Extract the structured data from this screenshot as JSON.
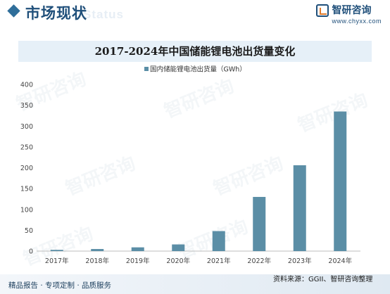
{
  "header": {
    "title": "市场现状",
    "ghost_text": "Status",
    "brand_name": "智研咨询",
    "brand_url": "www.chyxx.com"
  },
  "footer": {
    "left": "精品报告 · 专项定制 · 品质服务",
    "source": "资料来源：GGII、智研咨询整理"
  },
  "watermark_text": "智研咨询",
  "colors": {
    "bar": "#5b8ea6",
    "accent": "#1f4f7a",
    "band": "#e6f0f8"
  },
  "chart_data": {
    "type": "bar",
    "title": "2017-2024年中国储能锂电池出货量变化",
    "categories": [
      "2017年",
      "2018年",
      "2019年",
      "2020年",
      "2021年",
      "2022年",
      "2023年",
      "2024年"
    ],
    "series": [
      {
        "name": "国内储能锂电池出货量（GWh）",
        "values": [
          3,
          5,
          9,
          16,
          48,
          130,
          206,
          335
        ]
      }
    ],
    "xlabel": "",
    "ylabel": "",
    "ylim": [
      0,
      400
    ],
    "yticks": [
      0,
      50,
      100,
      150,
      200,
      250,
      300,
      350,
      400
    ],
    "legend": "top-center",
    "grid": false
  }
}
